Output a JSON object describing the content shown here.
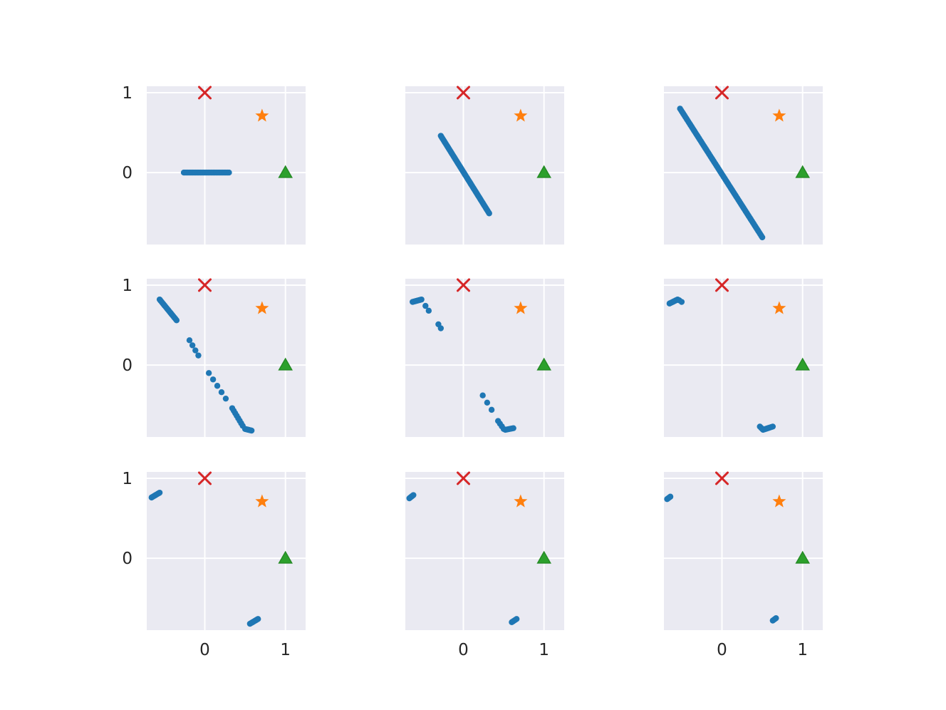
{
  "colors": {
    "axes_background": "#EAEAF2",
    "grid": "#FFFFFF",
    "tick_text": "#262626",
    "points": "#1F77B4",
    "cross_marker": "#D62728",
    "star_marker": "#FF7F0E",
    "triangle_marker": "#2CA02C"
  },
  "chart_data": {
    "type": "scatter",
    "layout": "3x3 grid of subplots, shared x and y axes",
    "grid": true,
    "xlim": [
      -0.72,
      1.25
    ],
    "ylim": [
      -0.9,
      1.08
    ],
    "xticks": [
      0,
      1
    ],
    "xtick_labels": [
      "0",
      "1"
    ],
    "yticks": [
      0,
      1
    ],
    "ytick_labels": [
      "0",
      "1"
    ],
    "reference_markers": [
      {
        "shape": "x",
        "x": 0,
        "y": 1,
        "color": "#D62728"
      },
      {
        "shape": "star",
        "x": 0.71,
        "y": 0.71,
        "color": "#FF7F0E"
      },
      {
        "shape": "triangle",
        "x": 1,
        "y": 0,
        "color": "#2CA02C"
      }
    ],
    "panels": [
      {
        "row": 0,
        "col": 0,
        "segments": [
          {
            "from": [
              -0.26,
              0
            ],
            "to": [
              0.3,
              0
            ],
            "n": 36
          }
        ]
      },
      {
        "row": 0,
        "col": 1,
        "segments": [
          {
            "from": [
              -0.28,
              0.46
            ],
            "to": [
              0.32,
              -0.51
            ],
            "n": 60
          }
        ]
      },
      {
        "row": 0,
        "col": 2,
        "segments": [
          {
            "from": [
              -0.52,
              0.8
            ],
            "to": [
              0.5,
              -0.81
            ],
            "n": 80
          }
        ]
      },
      {
        "row": 1,
        "col": 0,
        "segments": [
          {
            "from": [
              -0.56,
              0.82
            ],
            "to": [
              -0.35,
              0.56
            ],
            "n": 18
          },
          {
            "from": [
              -0.19,
              0.31
            ],
            "to": [
              -0.08,
              0.12
            ],
            "n": 4
          },
          {
            "from": [
              0.05,
              -0.1
            ],
            "to": [
              0.26,
              -0.42
            ],
            "n": 5
          },
          {
            "from": [
              0.34,
              -0.54
            ],
            "to": [
              0.47,
              -0.76
            ],
            "n": 8
          },
          {
            "from": [
              0.5,
              -0.8
            ],
            "to": [
              0.58,
              -0.82
            ],
            "n": 8
          }
        ]
      },
      {
        "row": 1,
        "col": 1,
        "segments": [
          {
            "from": [
              -0.63,
              0.79
            ],
            "to": [
              -0.52,
              0.82
            ],
            "n": 10
          },
          {
            "from": [
              -0.47,
              0.74
            ],
            "to": [
              -0.43,
              0.68
            ],
            "n": 2
          },
          {
            "from": [
              -0.31,
              0.51
            ],
            "to": [
              -0.28,
              0.46
            ],
            "n": 2
          },
          {
            "from": [
              0.24,
              -0.38
            ],
            "to": [
              0.35,
              -0.56
            ],
            "n": 3
          },
          {
            "from": [
              0.43,
              -0.7
            ],
            "to": [
              0.5,
              -0.8
            ],
            "n": 4
          },
          {
            "from": [
              0.52,
              -0.81
            ],
            "to": [
              0.62,
              -0.79
            ],
            "n": 7
          }
        ]
      },
      {
        "row": 1,
        "col": 2,
        "segments": [
          {
            "from": [
              -0.65,
              0.77
            ],
            "to": [
              -0.55,
              0.82
            ],
            "n": 8
          },
          {
            "from": [
              -0.53,
              0.81
            ],
            "to": [
              -0.5,
              0.79
            ],
            "n": 2
          },
          {
            "from": [
              0.47,
              -0.77
            ],
            "to": [
              0.5,
              -0.8
            ],
            "n": 3
          },
          {
            "from": [
              0.51,
              -0.81
            ],
            "to": [
              0.63,
              -0.77
            ],
            "n": 8
          }
        ]
      },
      {
        "row": 2,
        "col": 0,
        "segments": [
          {
            "from": [
              -0.66,
              0.76
            ],
            "to": [
              -0.56,
              0.82
            ],
            "n": 8
          },
          {
            "from": [
              0.56,
              -0.82
            ],
            "to": [
              0.66,
              -0.76
            ],
            "n": 8
          }
        ]
      },
      {
        "row": 2,
        "col": 1,
        "segments": [
          {
            "from": [
              -0.67,
              0.75
            ],
            "to": [
              -0.62,
              0.79
            ],
            "n": 5
          },
          {
            "from": [
              0.6,
              -0.8
            ],
            "to": [
              0.66,
              -0.76
            ],
            "n": 5
          }
        ]
      },
      {
        "row": 2,
        "col": 2,
        "segments": [
          {
            "from": [
              -0.68,
              0.74
            ],
            "to": [
              -0.64,
              0.77
            ],
            "n": 4
          },
          {
            "from": [
              0.63,
              -0.78
            ],
            "to": [
              0.67,
              -0.75
            ],
            "n": 4
          }
        ]
      }
    ]
  }
}
